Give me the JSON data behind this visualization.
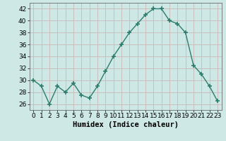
{
  "x": [
    0,
    1,
    2,
    3,
    4,
    5,
    6,
    7,
    8,
    9,
    10,
    11,
    12,
    13,
    14,
    15,
    16,
    17,
    18,
    19,
    20,
    21,
    22,
    23
  ],
  "y": [
    30,
    29,
    26,
    29,
    28,
    29.5,
    27.5,
    27,
    29,
    31.5,
    34,
    36,
    38,
    39.5,
    41,
    42,
    42,
    40,
    39.5,
    38,
    32.5,
    31,
    29,
    26.5
  ],
  "line_color": "#2d7d6e",
  "marker": "+",
  "marker_size": 4,
  "bg_color": "#cde8e5",
  "grid_color": "#c8b8b8",
  "xlabel": "Humidex (Indice chaleur)",
  "ylim": [
    25,
    43
  ],
  "xlim": [
    -0.5,
    23.5
  ],
  "yticks": [
    26,
    28,
    30,
    32,
    34,
    36,
    38,
    40,
    42
  ],
  "xticks": [
    0,
    1,
    2,
    3,
    4,
    5,
    6,
    7,
    8,
    9,
    10,
    11,
    12,
    13,
    14,
    15,
    16,
    17,
    18,
    19,
    20,
    21,
    22,
    23
  ],
  "tick_fontsize": 6.5,
  "xlabel_fontsize": 7.5,
  "xlabel_bold": true
}
